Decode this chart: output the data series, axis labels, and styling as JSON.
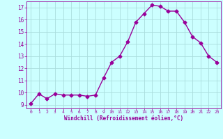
{
  "x": [
    0,
    1,
    2,
    3,
    4,
    5,
    6,
    7,
    8,
    9,
    10,
    11,
    12,
    13,
    14,
    15,
    16,
    17,
    18,
    19,
    20,
    21,
    22,
    23
  ],
  "y": [
    9.1,
    9.9,
    9.5,
    9.9,
    9.8,
    9.8,
    9.8,
    9.7,
    9.8,
    11.2,
    12.5,
    13.0,
    14.2,
    15.8,
    16.5,
    17.2,
    17.1,
    16.7,
    16.7,
    15.8,
    14.6,
    14.1,
    13.0,
    12.5
  ],
  "line_color": "#990099",
  "marker": "D",
  "marker_size": 2.5,
  "bg_color": "#ccffff",
  "grid_color": "#aadddd",
  "xlabel": "Windchill (Refroidissement éolien,°C)",
  "xlabel_color": "#990099",
  "tick_color": "#990099",
  "ylim": [
    8.7,
    17.5
  ],
  "xlim": [
    -0.5,
    23.5
  ],
  "yticks": [
    9,
    10,
    11,
    12,
    13,
    14,
    15,
    16,
    17
  ],
  "xticks": [
    0,
    1,
    2,
    3,
    4,
    5,
    6,
    7,
    8,
    9,
    10,
    11,
    12,
    13,
    14,
    15,
    16,
    17,
    18,
    19,
    20,
    21,
    22,
    23
  ],
  "linewidth": 1.0
}
